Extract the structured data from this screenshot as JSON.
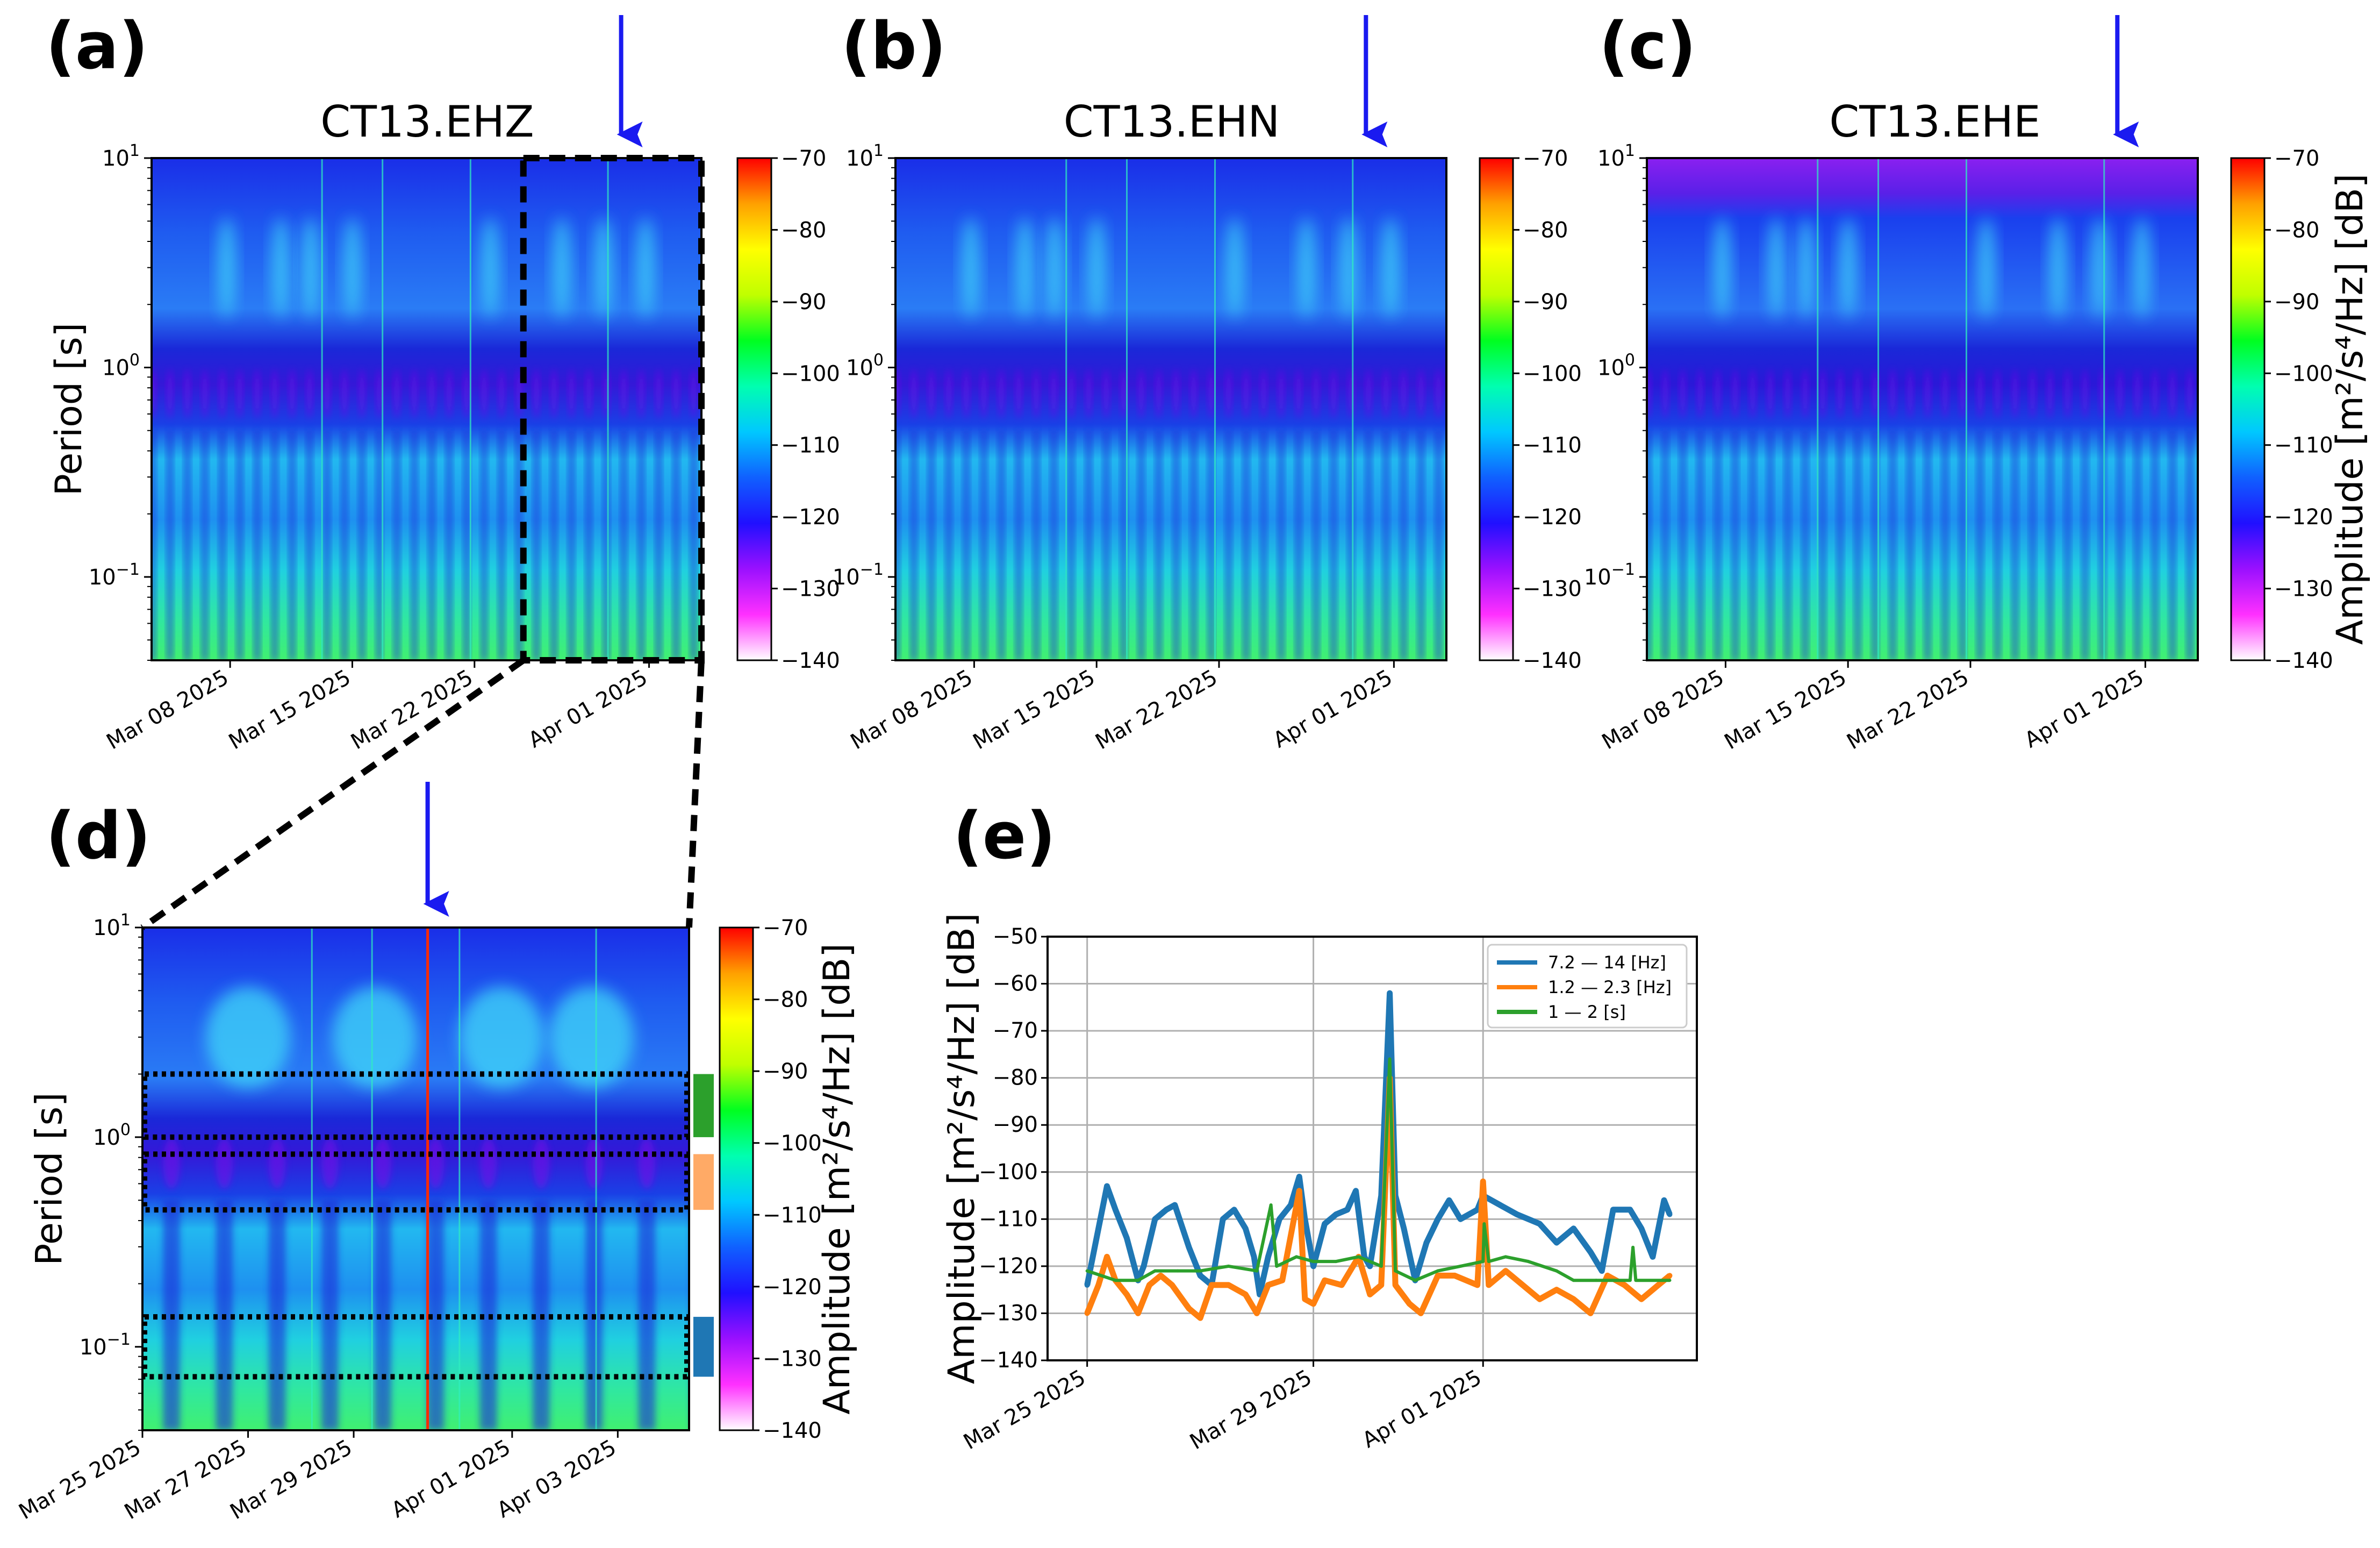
{
  "colors": {
    "arrow": "#1a1af0",
    "blue": "#1f77b4",
    "orange": "#ff7f0e",
    "green": "#2ca02c"
  },
  "colormap": [
    "#ffffff",
    "#ff30ff",
    "#9a10ff",
    "#2010ff",
    "#1060ff",
    "#00c8ff",
    "#00ffb0",
    "#00ff20",
    "#c0ff00",
    "#ffff00",
    "#ffa000",
    "#ff0000"
  ],
  "chart_data": [
    {
      "panel": "(a)",
      "type": "heatmap",
      "title": "CT13.EHZ",
      "ylabel": "Period [s]",
      "yscale": "log",
      "ylim": [
        0.04,
        10
      ],
      "yticks": [
        {
          "base": "10",
          "exp": "1",
          "value": 10
        },
        {
          "base": "10",
          "exp": "0",
          "value": 1
        },
        {
          "base": "10",
          "exp": "−1",
          "value": 0.1
        }
      ],
      "x_unit": "days since Mar 01 2025",
      "xlim": [
        2.5,
        34
      ],
      "xticks": [
        {
          "label": "Mar 08 2025",
          "value": 7
        },
        {
          "label": "Mar 15 2025",
          "value": 14
        },
        {
          "label": "Mar 22 2025",
          "value": 21
        },
        {
          "label": "Apr 01 2025",
          "value": 31
        }
      ],
      "colorbar": {
        "range": [
          -140,
          -70
        ],
        "ticks": [
          "−70",
          "−80",
          "−90",
          "−100",
          "−110",
          "−120",
          "−130",
          "−140"
        ],
        "label": ""
      },
      "energy_blobs_days": [
        6.8,
        9.9,
        11.6,
        14,
        21.9,
        26,
        28.4,
        30.8
      ],
      "arrow_day": 29.4,
      "zoom_box_days": [
        23.8,
        34
      ]
    },
    {
      "panel": "(b)",
      "type": "heatmap",
      "title": "CT13.EHN",
      "ylabel": "",
      "yscale": "log",
      "ylim": [
        0.04,
        10
      ],
      "yticks": [
        {
          "base": "10",
          "exp": "1",
          "value": 10
        },
        {
          "base": "10",
          "exp": "0",
          "value": 1
        },
        {
          "base": "10",
          "exp": "−1",
          "value": 0.1
        }
      ],
      "x_unit": "days since Mar 01 2025",
      "xlim": [
        2.5,
        34
      ],
      "xticks": [
        {
          "label": "Mar 08 2025",
          "value": 7
        },
        {
          "label": "Mar 15 2025",
          "value": 14
        },
        {
          "label": "Mar 22 2025",
          "value": 21
        },
        {
          "label": "Apr 01 2025",
          "value": 31
        }
      ],
      "colorbar": {
        "range": [
          -140,
          -70
        ],
        "ticks": [
          "−70",
          "−80",
          "−90",
          "−100",
          "−110",
          "−120",
          "−130",
          "−140"
        ],
        "label": ""
      },
      "energy_blobs_days": [
        6.8,
        9.9,
        11.6,
        14,
        21.9,
        26,
        28.4,
        30.8
      ],
      "arrow_day": 29.4
    },
    {
      "panel": "(c)",
      "type": "heatmap",
      "title": "CT13.EHE",
      "ylabel": "",
      "yscale": "log",
      "ylim": [
        0.04,
        10
      ],
      "yticks": [
        {
          "base": "10",
          "exp": "1",
          "value": 10
        },
        {
          "base": "10",
          "exp": "0",
          "value": 1
        },
        {
          "base": "10",
          "exp": "−1",
          "value": 0.1
        }
      ],
      "x_unit": "days since Mar 01 2025",
      "xlim": [
        2.5,
        34
      ],
      "xticks": [
        {
          "label": "Mar 08 2025",
          "value": 7
        },
        {
          "label": "Mar 15 2025",
          "value": 14
        },
        {
          "label": "Mar 22 2025",
          "value": 21
        },
        {
          "label": "Apr 01 2025",
          "value": 31
        }
      ],
      "colorbar": {
        "range": [
          -140,
          -70
        ],
        "ticks": [
          "−70",
          "−80",
          "−90",
          "−100",
          "−110",
          "−120",
          "−130",
          "−140"
        ],
        "label": "Amplitude [m²/s⁴/Hz] [dB]"
      },
      "energy_blobs_days": [
        6.8,
        9.9,
        11.6,
        14,
        21.9,
        26,
        28.4,
        30.8
      ],
      "arrow_day": 29.4
    },
    {
      "panel": "(d)",
      "type": "heatmap",
      "title": "",
      "ylabel": "Period [s]",
      "yscale": "log",
      "ylim": [
        0.04,
        10
      ],
      "yticks": [
        {
          "base": "10",
          "exp": "1",
          "value": 10
        },
        {
          "base": "10",
          "exp": "0",
          "value": 1
        },
        {
          "base": "10",
          "exp": "−1",
          "value": 0.1
        }
      ],
      "x_unit": "days since Mar 01 2025",
      "xlim": [
        24,
        34.35
      ],
      "xticks": [
        {
          "label": "Mar 25 2025",
          "value": 24
        },
        {
          "label": "Mar 27 2025",
          "value": 26
        },
        {
          "label": "Mar 29 2025",
          "value": 28
        },
        {
          "label": "Apr 01 2025",
          "value": 31
        },
        {
          "label": "Apr 03 2025",
          "value": 33
        }
      ],
      "colorbar": {
        "range": [
          -140,
          -70
        ],
        "ticks": [
          "−70",
          "−80",
          "−90",
          "−100",
          "−110",
          "−120",
          "−130",
          "−140"
        ],
        "label": "Amplitude [m²/s⁴/Hz] [dB]"
      },
      "energy_blobs_days": [
        26,
        28.4,
        30.8,
        32.5
      ],
      "arrow_day": 29.4,
      "bands_period_s": [
        {
          "name": "1 — 2 [s]",
          "range": [
            1.0,
            2.0
          ],
          "color": "#2ca02c"
        },
        {
          "name": "1.2 — 2.3 [Hz]",
          "range": [
            0.45,
            0.83
          ],
          "color": "#ffaa66"
        },
        {
          "name": "7.2 — 14 [Hz]",
          "range": [
            0.072,
            0.139
          ],
          "color": "#1f77b4"
        }
      ]
    },
    {
      "panel": "(e)",
      "type": "line",
      "ylabel": "Amplitude [m²/s⁴/Hz] [dB]",
      "xlabel": "",
      "ylim": [
        -140,
        -50
      ],
      "yticks": [
        -50,
        -60,
        -70,
        -80,
        -90,
        -100,
        -110,
        -120,
        -130,
        -140
      ],
      "ytick_labels": [
        "−50",
        "−60",
        "−70",
        "−80",
        "−90",
        "−100",
        "−110",
        "−120",
        "−130",
        "−140"
      ],
      "x_unit": "days since Mar 25 2025",
      "xlim": [
        -0.7,
        10.78
      ],
      "xticks": [
        {
          "label": "Mar 25 2025",
          "value": 0
        },
        {
          "label": "Mar 29 2025",
          "value": 4
        },
        {
          "label": "Apr 01 2025",
          "value": 7
        }
      ],
      "grid": true,
      "legend_position": "top-right",
      "series": [
        {
          "name": "7.2 — 14 [Hz]",
          "color": "#1f77b4",
          "x": [
            0,
            0.2,
            0.35,
            0.5,
            0.7,
            0.9,
            1.0,
            1.2,
            1.4,
            1.55,
            1.8,
            2.0,
            2.2,
            2.4,
            2.6,
            2.8,
            2.95,
            3.05,
            3.2,
            3.4,
            3.6,
            3.75,
            3.85,
            4.0,
            4.2,
            4.4,
            4.6,
            4.75,
            4.9,
            5.0,
            5.2,
            5.35,
            5.45,
            5.6,
            5.8,
            6.0,
            6.2,
            6.4,
            6.6,
            6.9,
            7.0,
            7.3,
            7.6,
            8.0,
            8.3,
            8.6,
            8.9,
            9.1,
            9.3,
            9.6,
            9.8,
            10.0,
            10.2,
            10.3
          ],
          "y": [
            -124,
            -112,
            -103,
            -108,
            -114,
            -123,
            -120,
            -110,
            -108,
            -107,
            -116,
            -122,
            -124,
            -110,
            -108,
            -112,
            -118,
            -126,
            -118,
            -110,
            -107,
            -101,
            -110,
            -120,
            -111,
            -109,
            -108,
            -104,
            -118,
            -120,
            -105,
            -62,
            -105,
            -112,
            -123,
            -115,
            -110,
            -106,
            -110,
            -108,
            -105,
            -107,
            -109,
            -111,
            -115,
            -112,
            -117,
            -121,
            -108,
            -108,
            -112,
            -118,
            -106,
            -109
          ]
        },
        {
          "name": "1.2 — 2.3 [Hz]",
          "color": "#ff7f0e",
          "x": [
            0,
            0.2,
            0.35,
            0.5,
            0.7,
            0.9,
            1.1,
            1.3,
            1.5,
            1.8,
            2.0,
            2.2,
            2.5,
            2.8,
            3.0,
            3.2,
            3.45,
            3.75,
            3.85,
            4.0,
            4.2,
            4.5,
            4.8,
            5.0,
            5.2,
            5.35,
            5.45,
            5.7,
            5.9,
            6.2,
            6.5,
            6.9,
            7.0,
            7.1,
            7.4,
            7.7,
            8.0,
            8.3,
            8.6,
            8.9,
            9.2,
            9.5,
            9.8,
            10.1,
            10.3
          ],
          "y": [
            -130,
            -124,
            -118,
            -123,
            -126,
            -130,
            -124,
            -122,
            -124,
            -129,
            -131,
            -124,
            -124,
            -126,
            -130,
            -124,
            -123,
            -104,
            -127,
            -128,
            -123,
            -124,
            -118,
            -126,
            -124,
            -80,
            -124,
            -128,
            -130,
            -122,
            -122,
            -124,
            -102,
            -124,
            -121,
            -124,
            -127,
            -125,
            -127,
            -130,
            -122,
            -124,
            -127,
            -124,
            -122
          ]
        },
        {
          "name": "1 — 2 [s]",
          "color": "#2ca02c",
          "x": [
            0,
            0.5,
            0.9,
            1.2,
            1.6,
            2.0,
            2.5,
            3.0,
            3.25,
            3.35,
            3.7,
            4.0,
            4.4,
            4.8,
            5.2,
            5.35,
            5.45,
            5.8,
            6.2,
            6.6,
            7.0,
            7.02,
            7.1,
            7.4,
            7.8,
            8.3,
            8.6,
            9.0,
            9.6,
            9.65,
            9.7,
            10.3
          ],
          "y": [
            -121,
            -123,
            -123,
            -121,
            -121,
            -121,
            -120,
            -121,
            -107,
            -120,
            -118,
            -119,
            -119,
            -118,
            -120,
            -76,
            -121,
            -123,
            -121,
            -120,
            -119,
            -111,
            -119,
            -118,
            -119,
            -121,
            -123,
            -123,
            -123,
            -116,
            -123,
            -123
          ]
        }
      ]
    }
  ]
}
